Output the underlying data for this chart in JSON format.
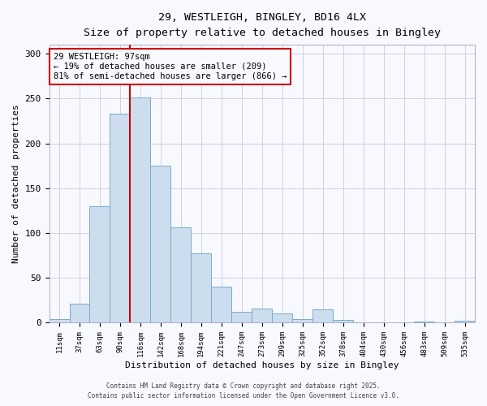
{
  "title": "29, WESTLEIGH, BINGLEY, BD16 4LX",
  "subtitle": "Size of property relative to detached houses in Bingley",
  "xlabel": "Distribution of detached houses by size in Bingley",
  "ylabel": "Number of detached properties",
  "bar_labels": [
    "11sqm",
    "37sqm",
    "63sqm",
    "90sqm",
    "116sqm",
    "142sqm",
    "168sqm",
    "194sqm",
    "221sqm",
    "247sqm",
    "273sqm",
    "299sqm",
    "325sqm",
    "352sqm",
    "378sqm",
    "404sqm",
    "430sqm",
    "456sqm",
    "483sqm",
    "509sqm",
    "535sqm"
  ],
  "bar_values": [
    4,
    21,
    130,
    233,
    251,
    175,
    106,
    77,
    40,
    12,
    16,
    10,
    4,
    15,
    3,
    0,
    0,
    0,
    1,
    0,
    2
  ],
  "bar_color": "#ccdded",
  "bar_edge_color": "#7aabcc",
  "vline_color": "#cc0000",
  "annotation_title": "29 WESTLEIGH: 97sqm",
  "annotation_line1": "← 19% of detached houses are smaller (209)",
  "annotation_line2": "81% of semi-detached houses are larger (866) →",
  "annotation_box_color": "#cc0000",
  "ylim": [
    0,
    310
  ],
  "yticks": [
    0,
    50,
    100,
    150,
    200,
    250,
    300
  ],
  "footer1": "Contains HM Land Registry data © Crown copyright and database right 2025.",
  "footer2": "Contains public sector information licensed under the Open Government Licence v3.0.",
  "bg_color": "#f8f8ff",
  "grid_color": "#d0d0e0"
}
